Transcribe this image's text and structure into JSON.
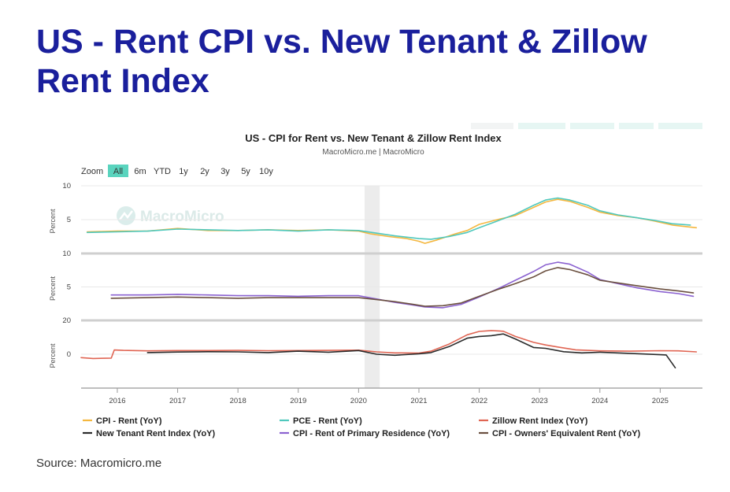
{
  "slide": {
    "title": "US - Rent CPI vs. New Tenant & Zillow Rent Index",
    "source": "Source: Macromicro.me"
  },
  "watermark": "MacroMicro",
  "zoom": {
    "label": "Zoom",
    "options": [
      "All",
      "6m",
      "YTD",
      "1y",
      "2y",
      "3y",
      "5y",
      "10y"
    ],
    "selected": "All"
  },
  "colors": {
    "cpi_rent": "#f4b73f",
    "pce_rent": "#4fc8bd",
    "zillow": "#e06553",
    "new_tenant": "#2b2b2b",
    "primary_residence": "#8b62d0",
    "oer": "#6b5040",
    "selected_button": "#5ad4be",
    "title": "#1a1f9c"
  },
  "chart_data": {
    "type": "line",
    "title": "US - CPI for Rent vs. New Tenant & Zillow Rent Index",
    "subtitle": "MacroMicro.me | MacroMicro",
    "x_ticks": [
      2016,
      2017,
      2018,
      2019,
      2020,
      2021,
      2022,
      2023,
      2024,
      2025
    ],
    "x_range": [
      2015.4,
      2025.7
    ],
    "shaded_period": [
      2020.1,
      2020.35
    ],
    "legend_position": "bottom",
    "panels": [
      {
        "ylabel": "Percent",
        "y_ticks": [
          5,
          10
        ],
        "ylim": [
          0,
          10
        ],
        "series": [
          {
            "name": "CPI - Rent (YoY)",
            "color_key": "cpi_rent",
            "x": [
              2015.5,
              2016,
              2016.5,
              2017,
              2017.5,
              2018,
              2018.5,
              2019,
              2019.5,
              2020,
              2020.2,
              2020.5,
              2020.8,
              2021,
              2021.1,
              2021.3,
              2021.6,
              2021.8,
              2022,
              2022.3,
              2022.6,
              2022.9,
              2023.1,
              2023.3,
              2023.5,
              2023.8,
              2024,
              2024.3,
              2024.6,
              2024.9,
              2025.2,
              2025.6
            ],
            "y": [
              3.2,
              3.3,
              3.3,
              3.7,
              3.4,
              3.4,
              3.5,
              3.4,
              3.5,
              3.3,
              2.9,
              2.5,
              2.2,
              1.8,
              1.5,
              2.0,
              2.9,
              3.4,
              4.3,
              5.0,
              5.6,
              6.8,
              7.6,
              8.0,
              7.7,
              6.8,
              6.1,
              5.6,
              5.3,
              4.8,
              4.2,
              3.8
            ]
          },
          {
            "name": "PCE - Rent (YoY)",
            "color_key": "pce_rent",
            "x": [
              2015.5,
              2016,
              2016.5,
              2017,
              2017.5,
              2018,
              2018.5,
              2019,
              2019.5,
              2020,
              2020.3,
              2020.6,
              2021,
              2021.2,
              2021.5,
              2021.8,
              2022,
              2022.3,
              2022.6,
              2022.9,
              2023.1,
              2023.3,
              2023.5,
              2023.8,
              2024,
              2024.3,
              2024.6,
              2024.9,
              2025.2,
              2025.5
            ],
            "y": [
              3.1,
              3.2,
              3.3,
              3.6,
              3.5,
              3.4,
              3.5,
              3.3,
              3.5,
              3.4,
              3.0,
              2.6,
              2.2,
              2.1,
              2.5,
              3.1,
              3.8,
              4.8,
              5.8,
              7.1,
              7.9,
              8.2,
              7.9,
              7.1,
              6.3,
              5.7,
              5.3,
              4.9,
              4.4,
              4.2
            ]
          }
        ]
      },
      {
        "ylabel": "Percent",
        "y_ticks": [
          5,
          10
        ],
        "ylim": [
          0,
          10
        ],
        "series": [
          {
            "name": "CPI - Rent of Primary Residence (YoY)",
            "color_key": "primary_residence",
            "x": [
              2015.9,
              2016.5,
              2017,
              2017.5,
              2018,
              2018.5,
              2019,
              2019.5,
              2020,
              2020.3,
              2020.6,
              2020.9,
              2021.1,
              2021.4,
              2021.7,
              2022,
              2022.3,
              2022.6,
              2022.9,
              2023.1,
              2023.3,
              2023.5,
              2023.8,
              2024,
              2024.3,
              2024.6,
              2025,
              2025.3,
              2025.55
            ],
            "y": [
              3.8,
              3.8,
              3.9,
              3.8,
              3.7,
              3.7,
              3.6,
              3.7,
              3.7,
              3.2,
              2.7,
              2.3,
              2.0,
              1.9,
              2.4,
              3.5,
              4.7,
              6.0,
              7.3,
              8.3,
              8.7,
              8.4,
              7.2,
              6.1,
              5.5,
              4.9,
              4.3,
              4.0,
              3.6
            ]
          },
          {
            "name": "CPI - Owners' Equivalent Rent (YoY)",
            "color_key": "oer",
            "x": [
              2015.9,
              2016.5,
              2017,
              2017.5,
              2018,
              2018.5,
              2019,
              2019.5,
              2020,
              2020.3,
              2020.6,
              2020.9,
              2021.1,
              2021.4,
              2021.7,
              2022,
              2022.3,
              2022.6,
              2022.9,
              2023.1,
              2023.3,
              2023.5,
              2023.8,
              2024,
              2024.3,
              2024.6,
              2025,
              2025.3,
              2025.55
            ],
            "y": [
              3.3,
              3.4,
              3.5,
              3.4,
              3.3,
              3.4,
              3.4,
              3.4,
              3.4,
              3.1,
              2.8,
              2.4,
              2.1,
              2.2,
              2.6,
              3.6,
              4.6,
              5.5,
              6.5,
              7.4,
              7.9,
              7.6,
              6.8,
              6.0,
              5.6,
              5.2,
              4.7,
              4.4,
              4.1
            ]
          }
        ]
      },
      {
        "ylabel": "Percent",
        "y_ticks": [
          0,
          20
        ],
        "ylim": [
          -20,
          20
        ],
        "series": [
          {
            "name": "Zillow Rent Index (YoY)",
            "color_key": "zillow",
            "x": [
              2015.4,
              2015.6,
              2015.9,
              2015.95,
              2016.1,
              2016.5,
              2017,
              2017.5,
              2018,
              2018.5,
              2019,
              2019.5,
              2020,
              2020.3,
              2020.6,
              2021,
              2021.2,
              2021.5,
              2021.8,
              2022,
              2022.2,
              2022.4,
              2022.6,
              2022.9,
              2023.1,
              2023.3,
              2023.6,
              2024,
              2024.5,
              2025,
              2025.3,
              2025.6
            ],
            "y": [
              -2.0,
              -2.5,
              -2.3,
              2.5,
              2.3,
              2.0,
              2.2,
              2.2,
              2.3,
              2.1,
              2.2,
              2.3,
              2.4,
              1.4,
              0.8,
              0.7,
              1.8,
              6.0,
              11.5,
              13.5,
              14.0,
              13.6,
              10.5,
              7.0,
              5.5,
              4.3,
              2.6,
              2.0,
              1.8,
              2.1,
              2.0,
              1.4
            ]
          },
          {
            "name": "New Tenant Rent Index (YoY)",
            "color_key": "new_tenant",
            "x": [
              2016.5,
              2017,
              2017.5,
              2018,
              2018.5,
              2019,
              2019.5,
              2020,
              2020.3,
              2020.6,
              2021,
              2021.2,
              2021.5,
              2021.8,
              2022,
              2022.2,
              2022.4,
              2022.6,
              2022.9,
              2023.1,
              2023.4,
              2023.7,
              2024,
              2024.5,
              2025,
              2025.1,
              2025.25
            ],
            "y": [
              1.0,
              1.3,
              1.5,
              1.4,
              1.0,
              1.8,
              1.2,
              2.2,
              0.0,
              -0.6,
              0.3,
              1.0,
              4.5,
              9.5,
              10.5,
              11.0,
              12.0,
              9.0,
              4.0,
              3.5,
              1.5,
              0.8,
              1.2,
              0.5,
              -0.3,
              -0.4,
              -8.0
            ]
          }
        ]
      }
    ],
    "legend": [
      {
        "name": "CPI - Rent (YoY)",
        "color_key": "cpi_rent"
      },
      {
        "name": "PCE - Rent (YoY)",
        "color_key": "pce_rent"
      },
      {
        "name": "Zillow Rent Index (YoY)",
        "color_key": "zillow"
      },
      {
        "name": "New Tenant Rent Index (YoY)",
        "color_key": "new_tenant"
      },
      {
        "name": "CPI - Rent of Primary Residence (YoY)",
        "color_key": "primary_residence"
      },
      {
        "name": "CPI - Owners' Equivalent Rent (YoY)",
        "color_key": "oer"
      }
    ]
  }
}
